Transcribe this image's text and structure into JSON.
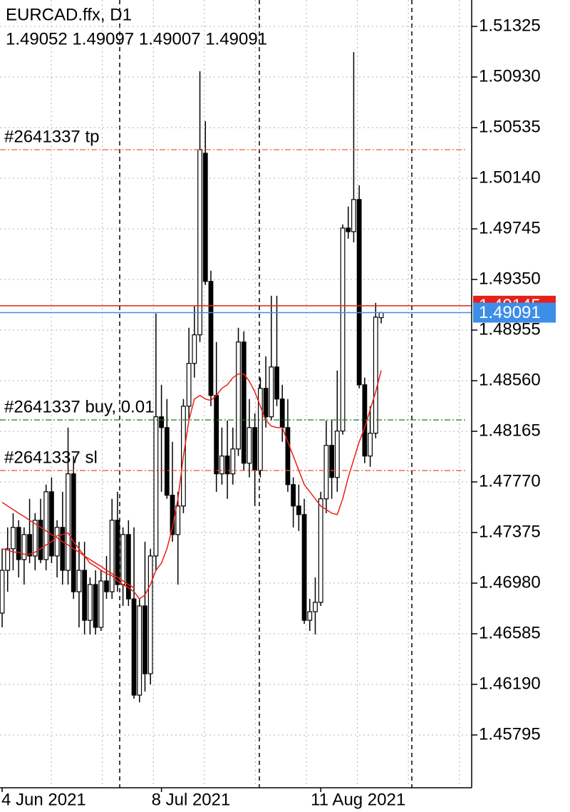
{
  "chart_data": {
    "type": "candlestick",
    "title": "EURCAD.ffx, D1",
    "subtitle": "1.49052 1.49097 1.49007 1.49091",
    "categories": [
      "4 Jun 2021",
      null,
      null,
      null,
      null,
      null,
      null,
      null,
      null,
      null,
      null,
      null,
      null,
      null,
      null,
      null,
      null,
      null,
      null,
      null,
      null,
      null,
      null,
      null,
      null,
      null,
      null,
      null,
      null,
      "8 Jul 2021",
      null,
      null,
      null,
      null,
      null,
      null,
      null,
      null,
      null,
      null,
      null,
      null,
      null,
      null,
      null,
      null,
      null,
      null,
      null,
      null,
      null,
      null,
      null,
      null,
      null,
      null,
      null,
      null,
      "11 Aug 2021",
      null,
      null,
      null,
      null,
      null,
      null,
      null,
      null,
      null,
      null,
      null
    ],
    "open": [
      1.46746,
      1.4708,
      1.47248,
      1.47415,
      1.47164,
      1.47359,
      1.47192,
      1.47471,
      1.47164,
      1.47693,
      1.47192,
      1.47415,
      1.4708,
      1.47833,
      1.46913,
      1.4708,
      1.4669,
      1.46969,
      1.46635,
      1.46997,
      1.46913,
      1.47471,
      1.46969,
      1.47359,
      1.46857,
      1.46106,
      1.46802,
      1.46273,
      1.47192,
      1.48278,
      1.48194,
      1.47666,
      1.47359,
      1.47582,
      1.48361,
      1.48695,
      1.48918,
      1.50335,
      1.49335,
      1.48445,
      1.47833,
      1.47972,
      1.47833,
      1.48027,
      1.48862,
      1.47916,
      1.48194,
      1.4786,
      1.485,
      1.48278,
      1.48667,
      1.48417,
      1.48194,
      1.47749,
      1.47582,
      1.47515,
      1.4669,
      1.46757,
      1.4683,
      1.47638,
      1.48055,
      1.47805,
      1.48167,
      1.49751,
      1.49723,
      1.49974,
      1.48528,
      1.47972,
      1.4815,
      1.49052
    ],
    "high": [
      1.47248,
      1.47415,
      1.47526,
      1.47471,
      1.47415,
      1.47638,
      1.47526,
      1.47638,
      1.47749,
      1.47805,
      1.47471,
      1.47693,
      1.48194,
      1.47972,
      1.47303,
      1.47303,
      1.47025,
      1.4708,
      1.4708,
      1.47192,
      1.47638,
      1.47693,
      1.47415,
      1.47471,
      1.47415,
      1.46857,
      1.47303,
      1.47248,
      1.49084,
      1.48528,
      1.48417,
      1.48083,
      1.47693,
      1.48417,
      1.48973,
      1.4914,
      1.50975,
      1.50586,
      1.49418,
      1.48862,
      1.48194,
      1.4825,
      1.48194,
      1.48973,
      1.48945,
      1.48417,
      1.48306,
      1.48584,
      1.4875,
      1.49223,
      1.49223,
      1.48528,
      1.48417,
      1.47805,
      1.47749,
      1.47638,
      1.46857,
      1.47025,
      1.47693,
      1.4825,
      1.4825,
      1.48639,
      1.49779,
      1.49919,
      1.51125,
      1.50085,
      1.48584,
      1.48361,
      1.49167,
      1.49097
    ],
    "low": [
      1.46635,
      1.46913,
      1.4708,
      1.47025,
      1.46969,
      1.47136,
      1.4708,
      1.47136,
      1.4708,
      1.47136,
      1.47025,
      1.46969,
      1.46969,
      1.46857,
      1.46635,
      1.46579,
      1.46579,
      1.46579,
      1.46607,
      1.46857,
      1.46857,
      1.46913,
      1.46802,
      1.46802,
      1.46078,
      1.4605,
      1.46134,
      1.46189,
      1.4708,
      1.47693,
      1.47638,
      1.47303,
      1.46969,
      1.47526,
      1.4825,
      1.48584,
      1.48862,
      1.49307,
      1.48361,
      1.47693,
      1.47749,
      1.47638,
      1.47749,
      1.47972,
      1.4786,
      1.47805,
      1.47582,
      1.47805,
      1.48194,
      1.4825,
      1.48361,
      1.48083,
      1.47693,
      1.47415,
      1.47387,
      1.46662,
      1.46607,
      1.46579,
      1.46802,
      1.47526,
      1.47638,
      1.47693,
      1.48139,
      1.49668,
      1.4964,
      1.485,
      1.47916,
      1.47888,
      1.48111,
      1.49007
    ],
    "close": [
      1.4708,
      1.47248,
      1.47415,
      1.47164,
      1.47359,
      1.47192,
      1.47471,
      1.47164,
      1.47693,
      1.47192,
      1.47415,
      1.4708,
      1.47833,
      1.46913,
      1.4708,
      1.4669,
      1.46969,
      1.46635,
      1.46997,
      1.46913,
      1.47471,
      1.46969,
      1.47359,
      1.46857,
      1.46106,
      1.46802,
      1.46273,
      1.47192,
      1.48278,
      1.48194,
      1.47666,
      1.47359,
      1.47582,
      1.48361,
      1.48695,
      1.48918,
      1.50363,
      1.49335,
      1.48445,
      1.47833,
      1.47972,
      1.47833,
      1.48027,
      1.48862,
      1.47916,
      1.48194,
      1.4786,
      1.485,
      1.48278,
      1.48667,
      1.48417,
      1.48194,
      1.47749,
      1.47582,
      1.47515,
      1.4669,
      1.46757,
      1.4683,
      1.47638,
      1.48055,
      1.47805,
      1.48167,
      1.49751,
      1.49723,
      1.49974,
      1.48528,
      1.47972,
      1.4815,
      1.49056,
      1.49091
    ],
    "up_color": "#ffffff",
    "down_color": "#000000",
    "edge_color": "#000000",
    "lines": [
      {
        "color": "#e8201a",
        "values": [
          1.47248,
          1.47239,
          1.47222,
          1.47222,
          1.47205,
          1.47205,
          1.47222,
          1.47248,
          1.47278,
          1.47303,
          1.4735,
          1.47359,
          1.47372,
          1.47303,
          1.47248,
          1.47192,
          1.47136,
          1.47111,
          1.4708,
          1.47055,
          1.47039,
          1.46997,
          1.46969,
          1.46944,
          1.46913,
          1.46857,
          1.46888,
          1.46969,
          1.4708,
          1.47136,
          1.47248,
          1.47415,
          1.47638,
          1.47972,
          1.4825,
          1.48417,
          1.48445,
          1.48417,
          1.48406,
          1.48445,
          1.485,
          1.48528,
          1.48584,
          1.48612,
          1.48612,
          1.48556,
          1.48473,
          1.48361,
          1.4825,
          1.48206,
          1.48194,
          1.48194,
          1.48083,
          1.47972,
          1.4786,
          1.47749,
          1.47693,
          1.47638,
          1.47582,
          1.47554,
          1.47526,
          1.47515,
          1.47638,
          1.47805,
          1.47944,
          1.48083,
          1.48194,
          1.48334,
          1.48473,
          1.48639
        ]
      },
      {
        "color": "#e8201a",
        "values": [
          1.4761,
          1.47582,
          1.47554,
          1.47526,
          1.475,
          1.47471,
          1.47444,
          1.47415,
          1.47387,
          1.47359,
          1.47333,
          1.47303,
          1.47278,
          1.47248,
          1.47222,
          1.47192,
          1.47164,
          1.47136,
          1.47111,
          1.4708,
          1.47055,
          1.47025,
          1.46997,
          1.46969,
          1.46944,
          null,
          null,
          null,
          null,
          null,
          null,
          null,
          null,
          null,
          null,
          null,
          null,
          null,
          null,
          null,
          null,
          null,
          null,
          null,
          null,
          null,
          null,
          null,
          null,
          null,
          null,
          null,
          null,
          null,
          null,
          null,
          null,
          null,
          null,
          null,
          null,
          null,
          null,
          null,
          null,
          null,
          null,
          null,
          null,
          null
        ]
      }
    ],
    "levels": [
      {
        "label": "#2641337 tp",
        "value": 1.50363,
        "color": "#e8542a"
      },
      {
        "label": "#2641337 buy, 0.01",
        "value": 1.48254,
        "color": "#1f7a1f"
      },
      {
        "label": "#2641337 sl",
        "value": 1.47859,
        "color": "#e8542a"
      }
    ],
    "price_lines": [
      {
        "value": 1.49145,
        "color": "#e8201a"
      },
      {
        "value": 1.49091,
        "color": "#3d8ee8"
      }
    ],
    "ylim": [
      1.45383,
      1.51531
    ],
    "yticks": [
      1.51325,
      {
        "value": 1.5093,
        "label": "1.50930"
      },
      1.50535,
      {
        "value": 1.5014,
        "label": "1.50140"
      },
      1.49745,
      {
        "value": 1.4935,
        "label": "1.49350"
      },
      1.48955,
      {
        "value": 1.4856,
        "label": "1.48560"
      },
      1.48165,
      {
        "value": 1.4777,
        "label": "1.47770"
      },
      1.47375,
      {
        "value": 1.4698,
        "label": "1.46980"
      },
      1.46585,
      {
        "value": 1.4619,
        "label": "1.46190"
      },
      1.45795
    ],
    "grid": true
  }
}
